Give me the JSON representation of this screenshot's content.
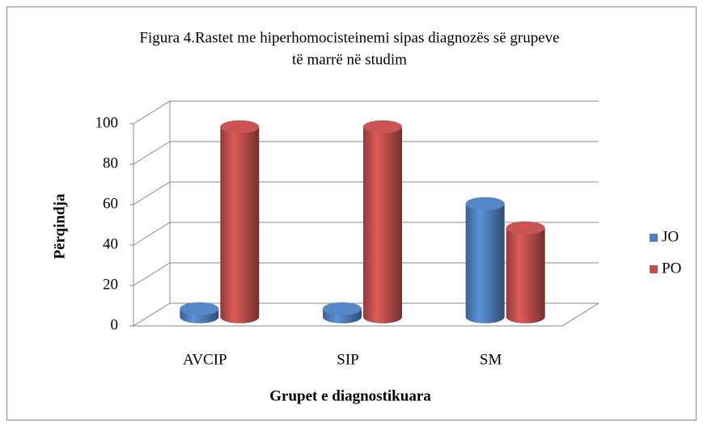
{
  "chart_data": {
    "type": "bar3d",
    "title": [
      "Figura 4.Rastet me hiperhomocisteinemi sipas diagnozës së grupeve",
      "të marrë në studim"
    ],
    "xlabel": "Grupet e diagnostikuara",
    "ylabel": "Përqindja",
    "categories": [
      "AVCIP",
      "SIP",
      "SM"
    ],
    "series": [
      {
        "name": "JO",
        "color": "#4f81bd",
        "values": [
          4,
          4,
          56
        ]
      },
      {
        "name": "PO",
        "color": "#c0504d",
        "values": [
          94,
          94,
          44
        ]
      }
    ],
    "ylim": [
      0,
      100
    ],
    "yticks": [
      0,
      20,
      40,
      60,
      80,
      100
    ],
    "grid": true,
    "legend": "right"
  }
}
